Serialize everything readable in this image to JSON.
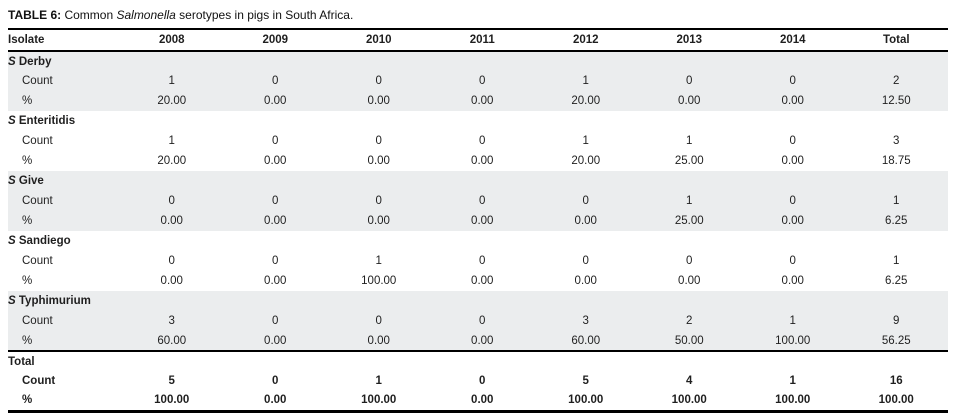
{
  "title": {
    "label": "TABLE 6:",
    "pre": " Common ",
    "organism": "Salmonella",
    "post": " serotypes in pigs in South Africa."
  },
  "row_labels": {
    "count": "Count",
    "percent": "%"
  },
  "table": {
    "columns": [
      "Isolate",
      "2008",
      "2009",
      "2010",
      "2011",
      "2012",
      "2013",
      "2014",
      "Total"
    ],
    "groups": [
      {
        "genus": "S",
        "name": "Derby",
        "shaded": true,
        "count": [
          "1",
          "0",
          "0",
          "0",
          "1",
          "0",
          "0",
          "2"
        ],
        "percent": [
          "20.00",
          "0.00",
          "0.00",
          "0.00",
          "20.00",
          "0.00",
          "0.00",
          "12.50"
        ]
      },
      {
        "genus": "S",
        "name": "Enteritidis",
        "shaded": false,
        "count": [
          "1",
          "0",
          "0",
          "0",
          "1",
          "1",
          "0",
          "3"
        ],
        "percent": [
          "20.00",
          "0.00",
          "0.00",
          "0.00",
          "20.00",
          "25.00",
          "0.00",
          "18.75"
        ]
      },
      {
        "genus": "S",
        "name": "Give",
        "shaded": true,
        "count": [
          "0",
          "0",
          "0",
          "0",
          "0",
          "1",
          "0",
          "1"
        ],
        "percent": [
          "0.00",
          "0.00",
          "0.00",
          "0.00",
          "0.00",
          "25.00",
          "0.00",
          "6.25"
        ]
      },
      {
        "genus": "S",
        "name": "Sandiego",
        "shaded": false,
        "count": [
          "0",
          "0",
          "1",
          "0",
          "0",
          "0",
          "0",
          "1"
        ],
        "percent": [
          "0.00",
          "0.00",
          "100.00",
          "0.00",
          "0.00",
          "0.00",
          "0.00",
          "6.25"
        ]
      },
      {
        "genus": "S",
        "name": "Typhimurium",
        "shaded": true,
        "count": [
          "3",
          "0",
          "0",
          "0",
          "3",
          "2",
          "1",
          "9"
        ],
        "percent": [
          "60.00",
          "0.00",
          "0.00",
          "0.00",
          "60.00",
          "50.00",
          "100.00",
          "56.25"
        ]
      }
    ],
    "total_group": {
      "name": "Total",
      "count": [
        "5",
        "0",
        "1",
        "0",
        "5",
        "4",
        "1",
        "16"
      ],
      "percent": [
        "100.00",
        "0.00",
        "100.00",
        "0.00",
        "100.00",
        "100.00",
        "100.00",
        "100.00"
      ]
    }
  },
  "chart_data": {
    "type": "table",
    "title": "TABLE 6: Common Salmonella serotypes in pigs in South Africa.",
    "columns": [
      "Isolate",
      "2008",
      "2009",
      "2010",
      "2011",
      "2012",
      "2013",
      "2014",
      "Total"
    ],
    "rows": [
      [
        "S Derby Count",
        1,
        0,
        0,
        0,
        1,
        0,
        0,
        2
      ],
      [
        "S Derby %",
        20.0,
        0.0,
        0.0,
        0.0,
        20.0,
        0.0,
        0.0,
        12.5
      ],
      [
        "S Enteritidis Count",
        1,
        0,
        0,
        0,
        1,
        1,
        0,
        3
      ],
      [
        "S Enteritidis %",
        20.0,
        0.0,
        0.0,
        0.0,
        20.0,
        25.0,
        0.0,
        18.75
      ],
      [
        "S Give Count",
        0,
        0,
        0,
        0,
        0,
        1,
        0,
        1
      ],
      [
        "S Give %",
        0.0,
        0.0,
        0.0,
        0.0,
        0.0,
        25.0,
        0.0,
        6.25
      ],
      [
        "S Sandiego Count",
        0,
        0,
        1,
        0,
        0,
        0,
        0,
        1
      ],
      [
        "S Sandiego %",
        0.0,
        0.0,
        100.0,
        0.0,
        0.0,
        0.0,
        0.0,
        6.25
      ],
      [
        "S Typhimurium Count",
        3,
        0,
        0,
        0,
        3,
        2,
        1,
        9
      ],
      [
        "S Typhimurium %",
        60.0,
        0.0,
        0.0,
        0.0,
        60.0,
        50.0,
        100.0,
        56.25
      ],
      [
        "Total Count",
        5,
        0,
        1,
        0,
        5,
        4,
        1,
        16
      ],
      [
        "Total %",
        100.0,
        0.0,
        100.0,
        0.0,
        100.0,
        100.0,
        100.0,
        100.0
      ]
    ]
  },
  "colors": {
    "shaded_row": "#ebedee",
    "rule": "#000000",
    "text": "#1f1f1f"
  }
}
